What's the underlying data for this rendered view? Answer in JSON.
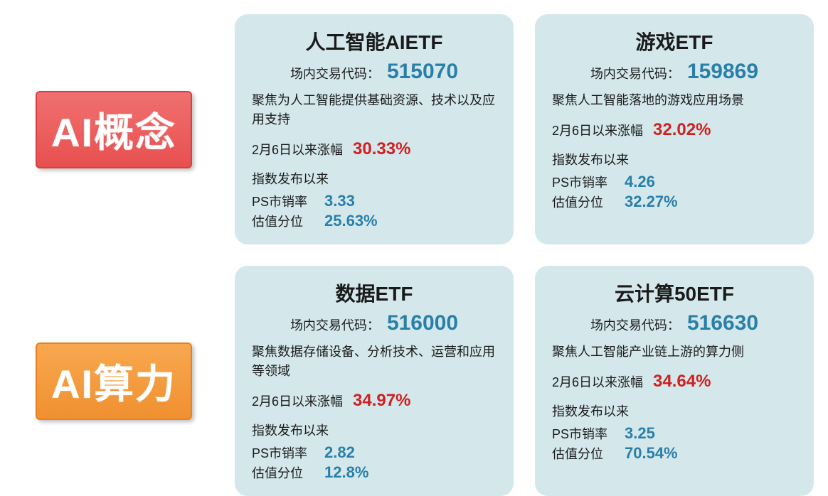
{
  "categories": {
    "ai_concept": {
      "label": "AI概念",
      "color_class": "label-red"
    },
    "ai_compute": {
      "label": "AI算力",
      "color_class": "label-orange"
    }
  },
  "colors": {
    "card_bg": "#d4e8ec",
    "code_value": "#2a7fa8",
    "gain_value": "#d02020",
    "metric_value": "#2a7fa8",
    "text": "#1a1a1a",
    "label_red_bg": "#e85050",
    "label_orange_bg": "#f09030"
  },
  "labels": {
    "code_label": "场内交易代码：",
    "gain_label": "2月6日以来涨幅",
    "index_header": "指数发布以来",
    "ps_label": "PS市销率",
    "valuation_label": "估值分位"
  },
  "cards": [
    {
      "title": "人工智能AIETF",
      "code": "515070",
      "description": "聚焦为人工智能提供基础资源、技术以及应用支持",
      "gain": "30.33%",
      "ps_ratio": "3.33",
      "valuation": "25.63%"
    },
    {
      "title": "游戏ETF",
      "code": "159869",
      "description": "聚焦人工智能落地的游戏应用场景",
      "gain": "32.02%",
      "ps_ratio": "4.26",
      "valuation": "32.27%"
    },
    {
      "title": "数据ETF",
      "code": "516000",
      "description": "聚焦数据存储设备、分析技术、运营和应用等领域",
      "gain": "34.97%",
      "ps_ratio": "2.82",
      "valuation": "12.8%"
    },
    {
      "title": "云计算50ETF",
      "code": "516630",
      "description": "聚焦人工智能产业链上游的算力侧",
      "gain": "34.64%",
      "ps_ratio": "3.25",
      "valuation": "70.54%"
    }
  ]
}
